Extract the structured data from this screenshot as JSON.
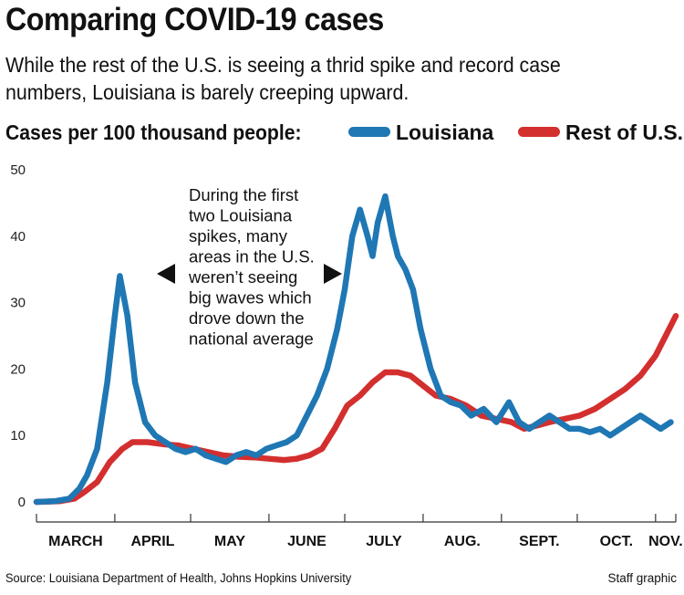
{
  "header": {
    "title": "Comparing COVID-19 cases",
    "subtitle": "While the rest of the U.S. is seeing a thrid spike and record case numbers, Louisiana is barely creeping upward."
  },
  "footer": {
    "source": "Source: Louisiana Department of Health, Johns Hopkins University",
    "credit": "Staff graphic"
  },
  "chart_data": {
    "type": "line",
    "title": "Comparing COVID-19 cases",
    "ylabel": "Cases per 100 thousand people:",
    "xlabel": "",
    "ylim": [
      0,
      50
    ],
    "yticks": [
      0,
      10,
      20,
      30,
      40,
      50
    ],
    "grid": false,
    "legend": {
      "title": "Cases per 100 thousand people:",
      "placement": "top"
    },
    "x_unit": "date (2020)",
    "months": [
      "MARCH",
      "APRIL",
      "MAY",
      "JUNE",
      "JULY",
      "AUG.",
      "SEPT.",
      "OCT.",
      "NOV."
    ],
    "annotation": {
      "lines": [
        "During the first",
        "two Louisiana",
        "spikes, many",
        "areas in the U.S.",
        "weren’t seeing",
        "big waves which",
        "drove down the",
        "national average"
      ]
    },
    "series": [
      {
        "name": "Louisiana",
        "color": "#1f77b4",
        "x": [
          "2020-03-01",
          "2020-03-08",
          "2020-03-14",
          "2020-03-18",
          "2020-03-21",
          "2020-03-25",
          "2020-03-29",
          "2020-04-01",
          "2020-04-03",
          "2020-04-06",
          "2020-04-09",
          "2020-04-13",
          "2020-04-17",
          "2020-04-21",
          "2020-04-25",
          "2020-04-29",
          "2020-05-03",
          "2020-05-07",
          "2020-05-11",
          "2020-05-15",
          "2020-05-19",
          "2020-05-23",
          "2020-05-27",
          "2020-05-31",
          "2020-06-04",
          "2020-06-08",
          "2020-06-12",
          "2020-06-16",
          "2020-06-20",
          "2020-06-24",
          "2020-06-28",
          "2020-07-01",
          "2020-07-04",
          "2020-07-07",
          "2020-07-10",
          "2020-07-12",
          "2020-07-14",
          "2020-07-17",
          "2020-07-20",
          "2020-07-22",
          "2020-07-25",
          "2020-07-28",
          "2020-07-31",
          "2020-08-04",
          "2020-08-08",
          "2020-08-12",
          "2020-08-16",
          "2020-08-20",
          "2020-08-25",
          "2020-08-30",
          "2020-09-04",
          "2020-09-08",
          "2020-09-12",
          "2020-09-16",
          "2020-09-20",
          "2020-09-24",
          "2020-09-28",
          "2020-10-02",
          "2020-10-06",
          "2020-10-10",
          "2020-10-14",
          "2020-10-18",
          "2020-10-22",
          "2020-10-26",
          "2020-10-30",
          "2020-11-03",
          "2020-11-07"
        ],
        "values": [
          0,
          0.1,
          0.5,
          2,
          4,
          8,
          18,
          28,
          34,
          28,
          18,
          12,
          10,
          9,
          8,
          7.5,
          8,
          7,
          6.5,
          6,
          7,
          7.5,
          7,
          8,
          8.5,
          9,
          10,
          13,
          16,
          20,
          26,
          32,
          40,
          44,
          40,
          37,
          42,
          46,
          40,
          37,
          35,
          32,
          26,
          20,
          16,
          15,
          14.5,
          13,
          14,
          12,
          15,
          12,
          11,
          12,
          13,
          12,
          11,
          11,
          10.5,
          11,
          10,
          11,
          12,
          13,
          12,
          11,
          12
        ]
      },
      {
        "name": "Rest of U.S.",
        "color": "#d32f2f",
        "x": [
          "2020-03-01",
          "2020-03-10",
          "2020-03-16",
          "2020-03-20",
          "2020-03-25",
          "2020-03-30",
          "2020-04-04",
          "2020-04-08",
          "2020-04-14",
          "2020-04-20",
          "2020-04-26",
          "2020-05-02",
          "2020-05-08",
          "2020-05-14",
          "2020-05-20",
          "2020-05-26",
          "2020-06-01",
          "2020-06-07",
          "2020-06-12",
          "2020-06-17",
          "2020-06-22",
          "2020-06-27",
          "2020-07-02",
          "2020-07-07",
          "2020-07-12",
          "2020-07-17",
          "2020-07-22",
          "2020-07-27",
          "2020-08-01",
          "2020-08-06",
          "2020-08-12",
          "2020-08-18",
          "2020-08-24",
          "2020-08-30",
          "2020-09-05",
          "2020-09-10",
          "2020-09-15",
          "2020-09-20",
          "2020-09-26",
          "2020-10-02",
          "2020-10-08",
          "2020-10-14",
          "2020-10-20",
          "2020-10-26",
          "2020-11-01",
          "2020-11-05",
          "2020-11-09"
        ],
        "values": [
          0,
          0.1,
          0.5,
          1.5,
          3,
          6,
          8,
          9,
          9,
          8.7,
          8.5,
          8,
          7.5,
          7,
          6.8,
          6.7,
          6.5,
          6.3,
          6.5,
          7,
          8,
          11,
          14.5,
          16,
          18,
          19.5,
          19.5,
          19,
          17.5,
          16,
          15.5,
          14.5,
          13,
          12.5,
          12,
          11,
          11.5,
          12,
          12.5,
          13,
          14,
          15.5,
          17,
          19,
          22,
          25,
          28
        ]
      }
    ]
  }
}
